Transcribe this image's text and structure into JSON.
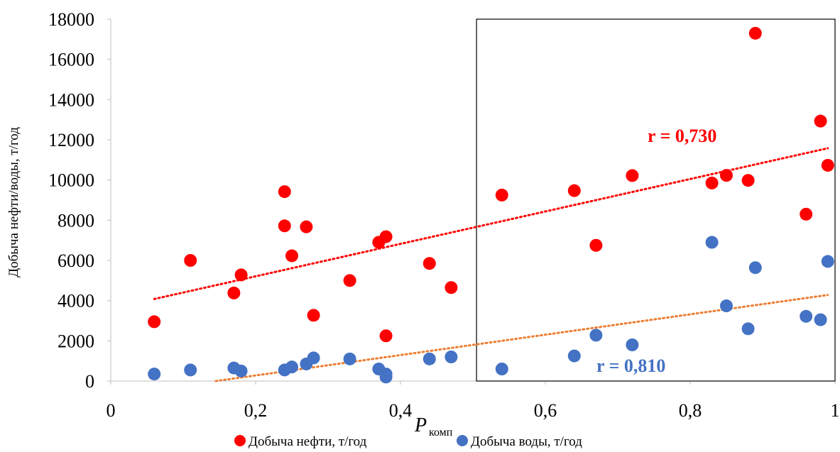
{
  "chart_data": {
    "type": "scatter",
    "title": "",
    "ylabel": "Добыча нефти/воды, т/год",
    "xlabel": "P",
    "xlabel_sub": "комп",
    "xlim": [
      0,
      1
    ],
    "ylim": [
      0,
      18000
    ],
    "x_ticks": [
      0,
      0.2,
      0.4,
      0.6,
      0.8,
      1
    ],
    "x_tick_labels": [
      "0",
      "0,2",
      "0,4",
      "0,6",
      "0,8",
      "1"
    ],
    "y_ticks": [
      0,
      2000,
      4000,
      6000,
      8000,
      10000,
      12000,
      14000,
      16000,
      18000
    ],
    "y_tick_labels": [
      "0",
      "2000",
      "4000",
      "6000",
      "8000",
      "10000",
      "12000",
      "14000",
      "16000",
      "18000"
    ],
    "grid": false,
    "legend_position": "bottom",
    "highlight_box": {
      "x_from": 0.505,
      "x_to": 1,
      "y_from": 0,
      "y_to": 18000
    },
    "series": [
      {
        "name": "Добыча нефти, т/год",
        "color": "#ff0000",
        "points": [
          [
            0.06,
            2950
          ],
          [
            0.11,
            6000
          ],
          [
            0.17,
            4380
          ],
          [
            0.18,
            5280
          ],
          [
            0.24,
            9420
          ],
          [
            0.24,
            7720
          ],
          [
            0.25,
            6230
          ],
          [
            0.27,
            7670
          ],
          [
            0.28,
            3270
          ],
          [
            0.33,
            5000
          ],
          [
            0.37,
            6900
          ],
          [
            0.38,
            7180
          ],
          [
            0.38,
            2250
          ],
          [
            0.44,
            5850
          ],
          [
            0.47,
            4650
          ],
          [
            0.54,
            9250
          ],
          [
            0.64,
            9470
          ],
          [
            0.67,
            6750
          ],
          [
            0.72,
            10220
          ],
          [
            0.83,
            9850
          ],
          [
            0.85,
            10230
          ],
          [
            0.88,
            9980
          ],
          [
            0.89,
            17300
          ],
          [
            0.96,
            8300
          ],
          [
            0.98,
            12930
          ],
          [
            0.99,
            10730
          ]
        ],
        "trend": {
          "x": [
            0.06,
            0.99
          ],
          "y": [
            4080,
            11580
          ],
          "label": "r = 0,730",
          "label_color": "#ff0000"
        }
      },
      {
        "name": "Добыча воды, т/год",
        "color": "#4472c4",
        "points": [
          [
            0.06,
            350
          ],
          [
            0.11,
            550
          ],
          [
            0.17,
            650
          ],
          [
            0.18,
            500
          ],
          [
            0.24,
            550
          ],
          [
            0.25,
            700
          ],
          [
            0.27,
            850
          ],
          [
            0.28,
            1150
          ],
          [
            0.33,
            1100
          ],
          [
            0.37,
            600
          ],
          [
            0.38,
            350
          ],
          [
            0.38,
            200
          ],
          [
            0.44,
            1100
          ],
          [
            0.47,
            1200
          ],
          [
            0.54,
            600
          ],
          [
            0.64,
            1250
          ],
          [
            0.67,
            2280
          ],
          [
            0.72,
            1800
          ],
          [
            0.83,
            6900
          ],
          [
            0.85,
            3740
          ],
          [
            0.88,
            2600
          ],
          [
            0.89,
            5640
          ],
          [
            0.96,
            3220
          ],
          [
            0.98,
            3050
          ],
          [
            0.99,
            5950
          ]
        ],
        "trend": {
          "x": [
            0.145,
            0.99
          ],
          "y": [
            0,
            4280
          ],
          "label": "r = 0,810",
          "label_color": "#4472c4",
          "line_color": "#ed7d31"
        }
      }
    ]
  }
}
